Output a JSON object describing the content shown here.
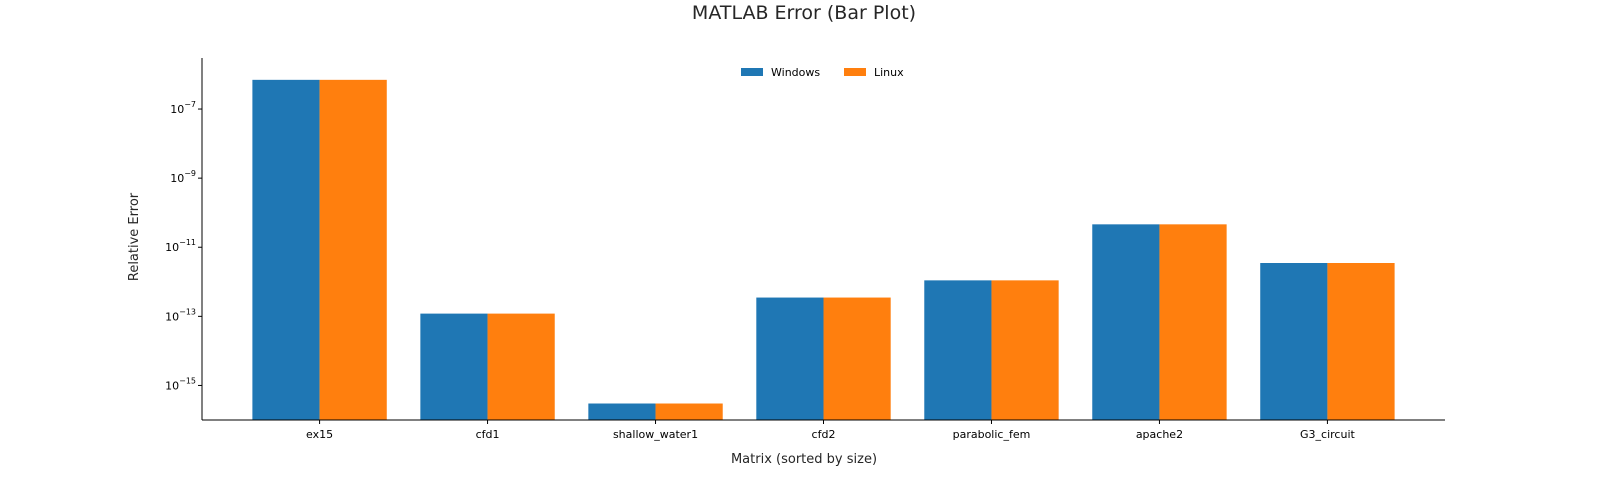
{
  "chart_data": {
    "type": "bar",
    "title": "MATLAB Error (Bar Plot)",
    "xlabel": "Matrix (sorted by size)",
    "ylabel": "Relative Error",
    "y_scale": "log",
    "ylim": [
      1e-16,
      3e-06
    ],
    "y_ticks": [
      {
        "exponent": -15
      },
      {
        "exponent": -13
      },
      {
        "exponent": -11
      },
      {
        "exponent": -9
      },
      {
        "exponent": -7
      }
    ],
    "categories": [
      "ex15",
      "cfd1",
      "shallow_water1",
      "cfd2",
      "parabolic_fem",
      "apache2",
      "G3_circuit"
    ],
    "series": [
      {
        "name": "Windows",
        "color": "#1f77b4",
        "values": [
          7e-07,
          1.2e-13,
          3e-16,
          3.5e-13,
          1.1e-12,
          4.6e-11,
          3.5e-12
        ]
      },
      {
        "name": "Linux",
        "color": "#ff7f0e",
        "values": [
          7e-07,
          1.2e-13,
          3e-16,
          3.5e-13,
          1.1e-12,
          4.6e-11,
          3.5e-12
        ]
      }
    ],
    "legend_position": "top-center",
    "grid": false
  }
}
